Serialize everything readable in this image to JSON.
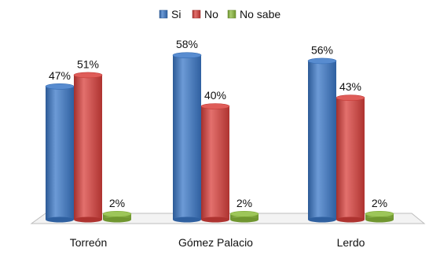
{
  "chart_data": {
    "type": "bar",
    "title": "",
    "xlabel": "",
    "ylabel": "",
    "ylim": [
      0,
      60
    ],
    "grid": false,
    "legend_position": "top",
    "categories": [
      "Torreón",
      "Gómez Palacio",
      "Lerdo"
    ],
    "series": [
      {
        "name": "Si",
        "color": "#3b78c8",
        "values": [
          47,
          58,
          56
        ],
        "labels": [
          "47%",
          "58%",
          "56%"
        ]
      },
      {
        "name": "No",
        "color": "#d9403c",
        "values": [
          51,
          40,
          43
        ],
        "labels": [
          "51%",
          "40%",
          "43%"
        ]
      },
      {
        "name": "No sabe",
        "color": "#8cbc3c",
        "values": [
          2,
          2,
          2
        ],
        "labels": [
          "2%",
          "2%",
          "2%"
        ]
      }
    ]
  }
}
